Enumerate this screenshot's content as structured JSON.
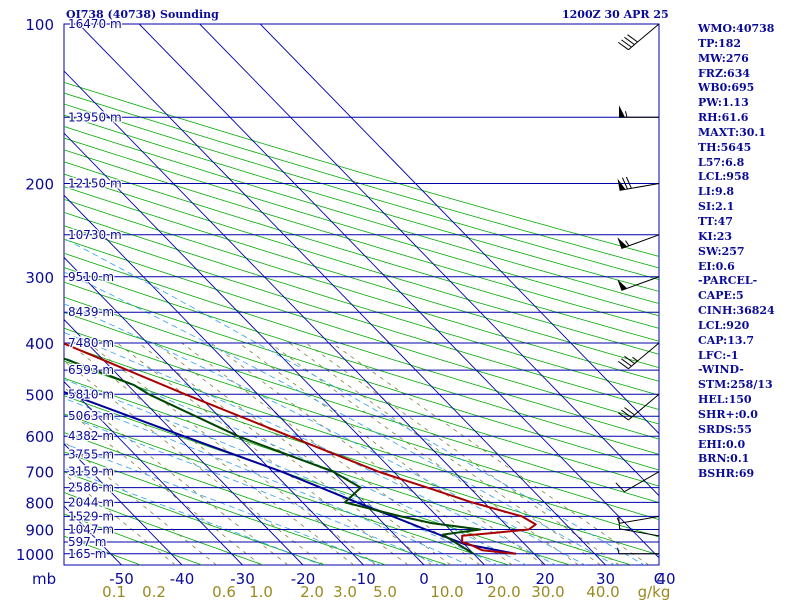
{
  "header": {
    "station": "OI738 (40738) Sounding",
    "time": "1200Z 30 APR 25"
  },
  "stats": [
    "WMO:40738",
    "TP:182",
    "MW:276",
    "FRZ:634",
    "WB0:695",
    "PW:1.13",
    "RH:61.6",
    "MAXT:30.1",
    "TH:5645",
    "L57:6.8",
    "LCL:958",
    "LI:9.8",
    "SI:2.1",
    "TT:47",
    "KI:23",
    "SW:257",
    "EI:0.6",
    "-PARCEL-",
    "CAPE:5",
    "CINH:36824",
    "LCL:920",
    "CAP:13.7",
    "LFC:-1",
    "-WIND-",
    "STM:258/13",
    "HEL:150",
    "SHR+:0.0",
    "SRDS:55",
    "EHI:0.0",
    "BRN:0.1",
    "BSHR:69"
  ],
  "chart_data": {
    "type": "skew-t",
    "pressure_unit_label": "mb",
    "temperature_unit_label": "C",
    "mixing_ratio_unit_label": "g/kg",
    "pressure_ticks": [
      "100",
      "200",
      "300",
      "400",
      "500",
      "600",
      "700",
      "800",
      "900",
      "1000"
    ],
    "temperature_ticks": [
      "-50",
      "-40",
      "-30",
      "-20",
      "-10",
      "0",
      "10",
      "20",
      "30",
      "40"
    ],
    "mixing_ratio_labels": [
      "0.1",
      "0.2",
      "0.6",
      "1.0",
      "2.0",
      "3.0",
      "5.0",
      "10.0",
      "20.0",
      "30.0",
      "40.0"
    ],
    "height_levels": [
      {
        "p": 100,
        "label": "16470 m"
      },
      {
        "p": 150,
        "label": "13950 m"
      },
      {
        "p": 200,
        "label": "12150 m"
      },
      {
        "p": 250,
        "label": "10730 m"
      },
      {
        "p": 300,
        "label": "9510 m"
      },
      {
        "p": 350,
        "label": "8439 m"
      },
      {
        "p": 400,
        "label": "7480 m"
      },
      {
        "p": 450,
        "label": "6593 m"
      },
      {
        "p": 500,
        "label": "5810 m"
      },
      {
        "p": 550,
        "label": "5063 m"
      },
      {
        "p": 600,
        "label": "4382 m"
      },
      {
        "p": 650,
        "label": "3755 m"
      },
      {
        "p": 700,
        "label": "3159 m"
      },
      {
        "p": 750,
        "label": "2586 m"
      },
      {
        "p": 800,
        "label": "2044 m"
      },
      {
        "p": 850,
        "label": "1529 m"
      },
      {
        "p": 900,
        "label": "1047 m"
      },
      {
        "p": 950,
        "label": "597 m"
      },
      {
        "p": 1000,
        "label": "165 m"
      }
    ],
    "temperature_profile": [
      {
        "p": 1000,
        "t": 17
      },
      {
        "p": 985,
        "t": 12
      },
      {
        "p": 962,
        "t": 11
      },
      {
        "p": 950,
        "t": 10
      },
      {
        "p": 925,
        "t": 11
      },
      {
        "p": 915,
        "t": 16
      },
      {
        "p": 900,
        "t": 23
      },
      {
        "p": 880,
        "t": 25
      },
      {
        "p": 850,
        "t": 24
      },
      {
        "p": 800,
        "t": 18
      },
      {
        "p": 750,
        "t": 13
      },
      {
        "p": 700,
        "t": 7.5
      },
      {
        "p": 600,
        "t": -1.5
      },
      {
        "p": 500,
        "t": -12
      },
      {
        "p": 400,
        "t": -24
      },
      {
        "p": 350,
        "t": -31
      },
      {
        "p": 300,
        "t": -39
      },
      {
        "p": 250,
        "t": -48.5
      },
      {
        "p": 220,
        "t": -54
      },
      {
        "p": 200,
        "t": -56.5
      },
      {
        "p": 180,
        "t": -60
      },
      {
        "p": 165,
        "t": -64
      },
      {
        "p": 150,
        "t": -64
      },
      {
        "p": 130,
        "t": -68
      },
      {
        "p": 115,
        "t": -70
      },
      {
        "p": 105,
        "t": -68
      },
      {
        "p": 100,
        "t": -66
      }
    ],
    "dewpoint_profile": [
      {
        "p": 1000,
        "t": 10
      },
      {
        "p": 960,
        "t": 9
      },
      {
        "p": 920,
        "t": 8
      },
      {
        "p": 900,
        "t": 15
      },
      {
        "p": 875,
        "t": 8
      },
      {
        "p": 850,
        "t": 4
      },
      {
        "p": 800,
        "t": -3
      },
      {
        "p": 750,
        "t": 2
      },
      {
        "p": 700,
        "t": 0
      },
      {
        "p": 600,
        "t": -10
      },
      {
        "p": 500,
        "t": -18
      },
      {
        "p": 480,
        "t": -19
      },
      {
        "p": 430,
        "t": -26
      },
      {
        "p": 400,
        "t": -31
      },
      {
        "p": 370,
        "t": -26
      },
      {
        "p": 350,
        "t": -41
      },
      {
        "p": 300,
        "t": -47
      },
      {
        "p": 250,
        "t": -59
      },
      {
        "p": 220,
        "t": -65
      },
      {
        "p": 200,
        "t": -68
      },
      {
        "p": 180,
        "t": -71
      },
      {
        "p": 165,
        "t": -69
      },
      {
        "p": 150,
        "t": -66
      },
      {
        "p": 130,
        "t": -74
      },
      {
        "p": 115,
        "t": -80
      },
      {
        "p": 105,
        "t": -81
      },
      {
        "p": 100,
        "t": -81
      }
    ],
    "parcel_profile": [
      {
        "p": 1000,
        "t": 17
      },
      {
        "p": 958,
        "t": 10
      },
      {
        "p": 900,
        "t": 6
      },
      {
        "p": 800,
        "t": -1
      },
      {
        "p": 700,
        "t": -8.5
      },
      {
        "p": 600,
        "t": -19
      },
      {
        "p": 500,
        "t": -31
      },
      {
        "p": 400,
        "t": -46
      },
      {
        "p": 300,
        "t": -64
      },
      {
        "p": 250,
        "t": -73
      },
      {
        "p": 200,
        "t": -84
      },
      {
        "p": 150,
        "t": -96
      },
      {
        "p": 130,
        "t": -101
      }
    ],
    "wind_barbs": [
      {
        "p": 1000,
        "dir": 270,
        "spd": 5
      },
      {
        "p": 925,
        "dir": 280,
        "spd": 10
      },
      {
        "p": 850,
        "dir": 260,
        "spd": 5
      },
      {
        "p": 700,
        "dir": 240,
        "spd": 10
      },
      {
        "p": 500,
        "dir": 230,
        "spd": 30
      },
      {
        "p": 400,
        "dir": 230,
        "spd": 35
      },
      {
        "p": 300,
        "dir": 250,
        "spd": 50
      },
      {
        "p": 250,
        "dir": 250,
        "spd": 55
      },
      {
        "p": 200,
        "dir": 260,
        "spd": 70
      },
      {
        "p": 150,
        "dir": 270,
        "spd": 55
      },
      {
        "p": 100,
        "dir": 230,
        "spd": 40
      }
    ],
    "colors": {
      "temperature": "#aa0000",
      "dewpoint": "#004400",
      "parcel": "#000099",
      "isobar": "#0000aa",
      "isotherm": "#0000aa",
      "dry_adiabat": "#00aa00",
      "moist_adiabat": "#33a0ee",
      "mixing_ratio": "#808040",
      "labels": "#0a0a9a",
      "mixing_ratio_labels": "#9a8a20"
    }
  }
}
